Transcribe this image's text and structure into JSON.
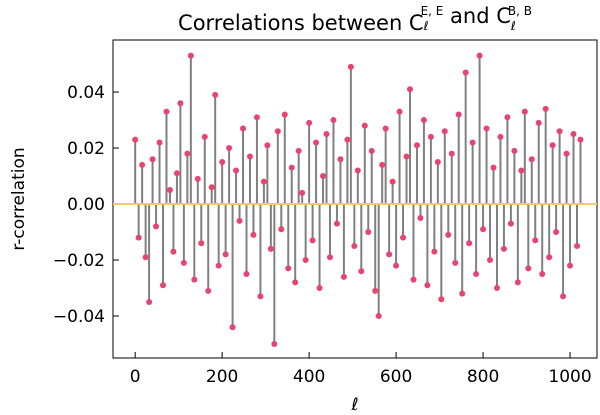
{
  "chart_data": {
    "type": "stem",
    "title": [
      "Correlations between C",
      "ℓ",
      "E, E",
      " and C",
      "ℓ",
      "B, B"
    ],
    "xlabel": "ℓ",
    "ylabel": "r-correlation",
    "xlim": [
      -51,
      1062
    ],
    "ylim": [
      -0.055,
      0.0586
    ],
    "xticks": [
      0,
      200,
      400,
      600,
      800,
      1000
    ],
    "yticks": [
      {
        "value": -0.04,
        "label": "−0.04"
      },
      {
        "value": -0.02,
        "label": "−0.02"
      },
      {
        "value": 0,
        "label": "0.00"
      },
      0.02,
      0.04
    ],
    "stem_color": "#808080",
    "marker_color": "#e8446f",
    "reference_line": {
      "value": 0,
      "color": "#f5c86a"
    },
    "x": [
      0,
      8,
      16,
      24,
      32,
      40,
      48,
      56,
      64,
      72,
      80,
      88,
      96,
      104,
      112,
      120,
      128,
      136,
      144,
      152,
      160,
      168,
      176,
      184,
      192,
      200,
      208,
      216,
      224,
      232,
      240,
      248,
      256,
      264,
      272,
      280,
      288,
      296,
      304,
      312,
      320,
      328,
      336,
      344,
      352,
      360,
      368,
      376,
      384,
      392,
      400,
      408,
      416,
      424,
      432,
      440,
      448,
      456,
      464,
      472,
      480,
      488,
      496,
      504,
      512,
      520,
      528,
      536,
      544,
      552,
      560,
      568,
      576,
      584,
      592,
      600,
      608,
      616,
      624,
      632,
      640,
      648,
      656,
      664,
      672,
      680,
      688,
      696,
      704,
      712,
      720,
      728,
      736,
      744,
      752,
      760,
      768,
      776,
      784,
      792,
      800,
      808,
      816,
      824,
      832,
      840,
      848,
      856,
      864,
      872,
      880,
      888,
      896,
      904,
      912,
      920,
      928,
      936,
      944,
      952,
      960,
      968,
      976,
      984,
      992,
      1000,
      1008,
      1016,
      1024
    ],
    "values": [
      0.023,
      -0.012,
      0.014,
      -0.019,
      -0.035,
      0.016,
      -0.008,
      0.022,
      -0.029,
      0.033,
      0.005,
      -0.017,
      0.011,
      0.036,
      -0.021,
      0.018,
      0.053,
      -0.027,
      0.009,
      -0.014,
      0.024,
      -0.031,
      0.006,
      0.039,
      -0.022,
      0.015,
      -0.018,
      0.02,
      -0.044,
      0.012,
      -0.006,
      0.027,
      -0.025,
      0.017,
      -0.011,
      0.031,
      -0.033,
      0.008,
      0.021,
      -0.016,
      -0.05,
      0.026,
      -0.009,
      0.032,
      -0.023,
      0.013,
      -0.028,
      0.019,
      0.004,
      -0.02,
      0.029,
      -0.013,
      0.022,
      -0.03,
      0.01,
      0.025,
      -0.019,
      0.03,
      -0.007,
      0.016,
      -0.026,
      0.023,
      0.049,
      -0.015,
      0.012,
      -0.024,
      0.028,
      -0.01,
      0.019,
      -0.031,
      -0.04,
      0.014,
      0.027,
      -0.018,
      0.008,
      -0.022,
      0.033,
      -0.012,
      0.017,
      0.041,
      -0.027,
      0.021,
      -0.005,
      0.03,
      -0.029,
      0.024,
      -0.017,
      0.015,
      -0.034,
      0.026,
      -0.011,
      0.018,
      -0.021,
      0.032,
      -0.032,
      0.047,
      -0.014,
      0.022,
      -0.025,
      0.053,
      -0.009,
      0.027,
      -0.02,
      0.013,
      -0.03,
      0.024,
      -0.016,
      0.031,
      -0.007,
      0.019,
      -0.028,
      0.012,
      0.033,
      -0.023,
      0.016,
      -0.013,
      0.029,
      -0.025,
      0.034,
      -0.019,
      0.021,
      -0.01,
      0.026,
      -0.033,
      0.018,
      -0.022,
      0.025,
      -0.015,
      0.023
    ]
  }
}
